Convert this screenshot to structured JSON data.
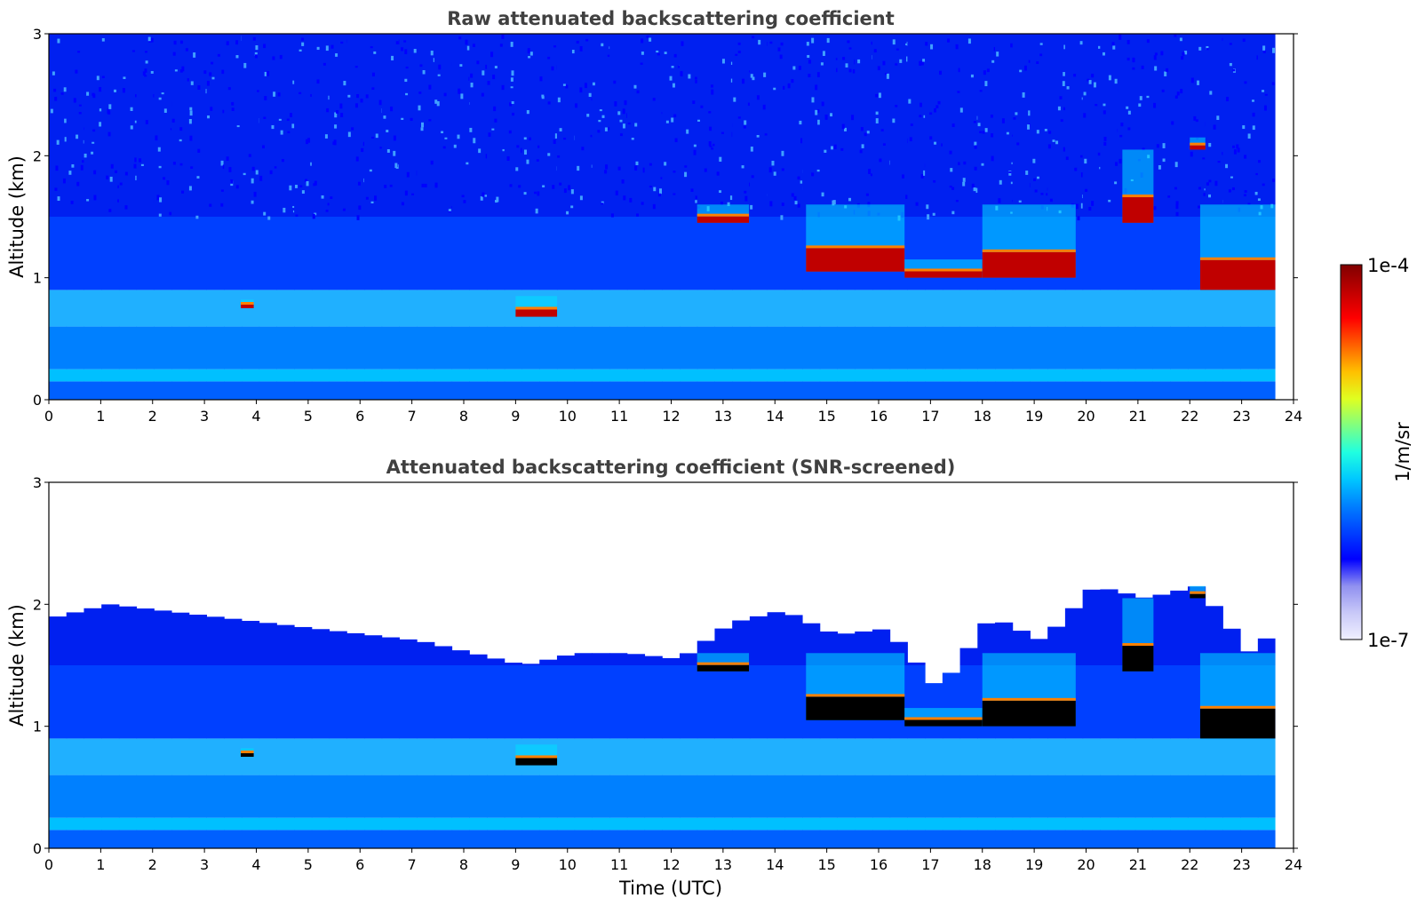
{
  "figure": {
    "panels": [
      {
        "title": "Raw attenuated backscattering coefficient",
        "ylabel": "Altitude (km)",
        "xlabel": "",
        "screened": false
      },
      {
        "title": "Attenuated backscattering coefficient (SNR-screened)",
        "ylabel": "Altitude (km)",
        "xlabel": "Time (UTC)",
        "screened": true
      }
    ],
    "colorbar": {
      "label": "1/m/sr",
      "max_label": "1e-4",
      "min_label": "1e-7",
      "scale": "log",
      "colormap": "jet",
      "colors": [
        "#f0f0ff",
        "#c8c8f8",
        "#9090f0",
        "#0000ff",
        "#0040ff",
        "#0080ff",
        "#00c8ff",
        "#20ffe0",
        "#80ff80",
        "#e0ff20",
        "#ffc000",
        "#ff6000",
        "#ff0000",
        "#c00000",
        "#800000"
      ]
    }
  },
  "chart_data": [
    {
      "type": "heatmap",
      "title": "Raw attenuated backscattering coefficient",
      "xlabel": "",
      "ylabel": "Altitude (km)",
      "xlim": [
        0,
        24
      ],
      "ylim": [
        0,
        3
      ],
      "xticks": [
        "0",
        "1",
        "2",
        "3",
        "4",
        "5",
        "6",
        "7",
        "8",
        "9",
        "10",
        "11",
        "12",
        "13",
        "14",
        "15",
        "16",
        "17",
        "18",
        "19",
        "20",
        "21",
        "22",
        "23",
        "24"
      ],
      "yticks": [
        "0",
        "1",
        "2",
        "3"
      ],
      "data_end_hour": 23.65,
      "cloud_layers": [
        {
          "t_start": 3.7,
          "t_end": 3.95,
          "base_km": 0.75,
          "top_km": 0.82,
          "intensity": "1e-4"
        },
        {
          "t_start": 9.0,
          "t_end": 9.8,
          "base_km": 0.68,
          "top_km": 0.85,
          "intensity": "1e-4"
        },
        {
          "t_start": 12.5,
          "t_end": 13.5,
          "base_km": 1.45,
          "top_km": 1.6,
          "intensity": "1e-4"
        },
        {
          "t_start": 14.6,
          "t_end": 16.5,
          "base_km": 1.05,
          "top_km": 1.6,
          "intensity": "1e-4"
        },
        {
          "t_start": 16.5,
          "t_end": 18.0,
          "base_km": 1.0,
          "top_km": 1.15,
          "intensity": "1e-4"
        },
        {
          "t_start": 18.0,
          "t_end": 19.8,
          "base_km": 1.0,
          "top_km": 1.6,
          "intensity": "1e-4"
        },
        {
          "t_start": 20.7,
          "t_end": 21.3,
          "base_km": 1.45,
          "top_km": 2.05,
          "intensity": "1e-4"
        },
        {
          "t_start": 22.0,
          "t_end": 22.3,
          "base_km": 2.05,
          "top_km": 2.15,
          "intensity": "1e-4"
        },
        {
          "t_start": 22.2,
          "t_end": 23.65,
          "base_km": 0.9,
          "top_km": 1.6,
          "intensity": "1e-4"
        }
      ]
    },
    {
      "type": "heatmap",
      "title": "Attenuated backscattering coefficient (SNR-screened)",
      "xlabel": "Time (UTC)",
      "ylabel": "Altitude (km)",
      "xlim": [
        0,
        24
      ],
      "ylim": [
        0,
        3
      ],
      "xticks": [
        "0",
        "1",
        "2",
        "3",
        "4",
        "5",
        "6",
        "7",
        "8",
        "9",
        "10",
        "11",
        "12",
        "13",
        "14",
        "15",
        "16",
        "17",
        "18",
        "19",
        "20",
        "21",
        "22",
        "23",
        "24"
      ],
      "yticks": [
        "0",
        "1",
        "2",
        "3"
      ],
      "data_end_hour": 23.65,
      "signal_top_km": [
        [
          0,
          1.9
        ],
        [
          1,
          2.0
        ],
        [
          2,
          1.95
        ],
        [
          3,
          1.9
        ],
        [
          4,
          1.85
        ],
        [
          5,
          1.8
        ],
        [
          6,
          1.75
        ],
        [
          7,
          1.7
        ],
        [
          8,
          1.6
        ],
        [
          9,
          1.5
        ],
        [
          10,
          1.6
        ],
        [
          11,
          1.6
        ],
        [
          12,
          1.55
        ],
        [
          13,
          1.85
        ],
        [
          14,
          1.95
        ],
        [
          15,
          1.75
        ],
        [
          16,
          1.8
        ],
        [
          17,
          1.3
        ],
        [
          18,
          1.9
        ],
        [
          19,
          1.7
        ],
        [
          20,
          2.15
        ],
        [
          21,
          2.05
        ],
        [
          22,
          2.15
        ],
        [
          23,
          1.6
        ],
        [
          23.65,
          1.85
        ]
      ]
    }
  ]
}
